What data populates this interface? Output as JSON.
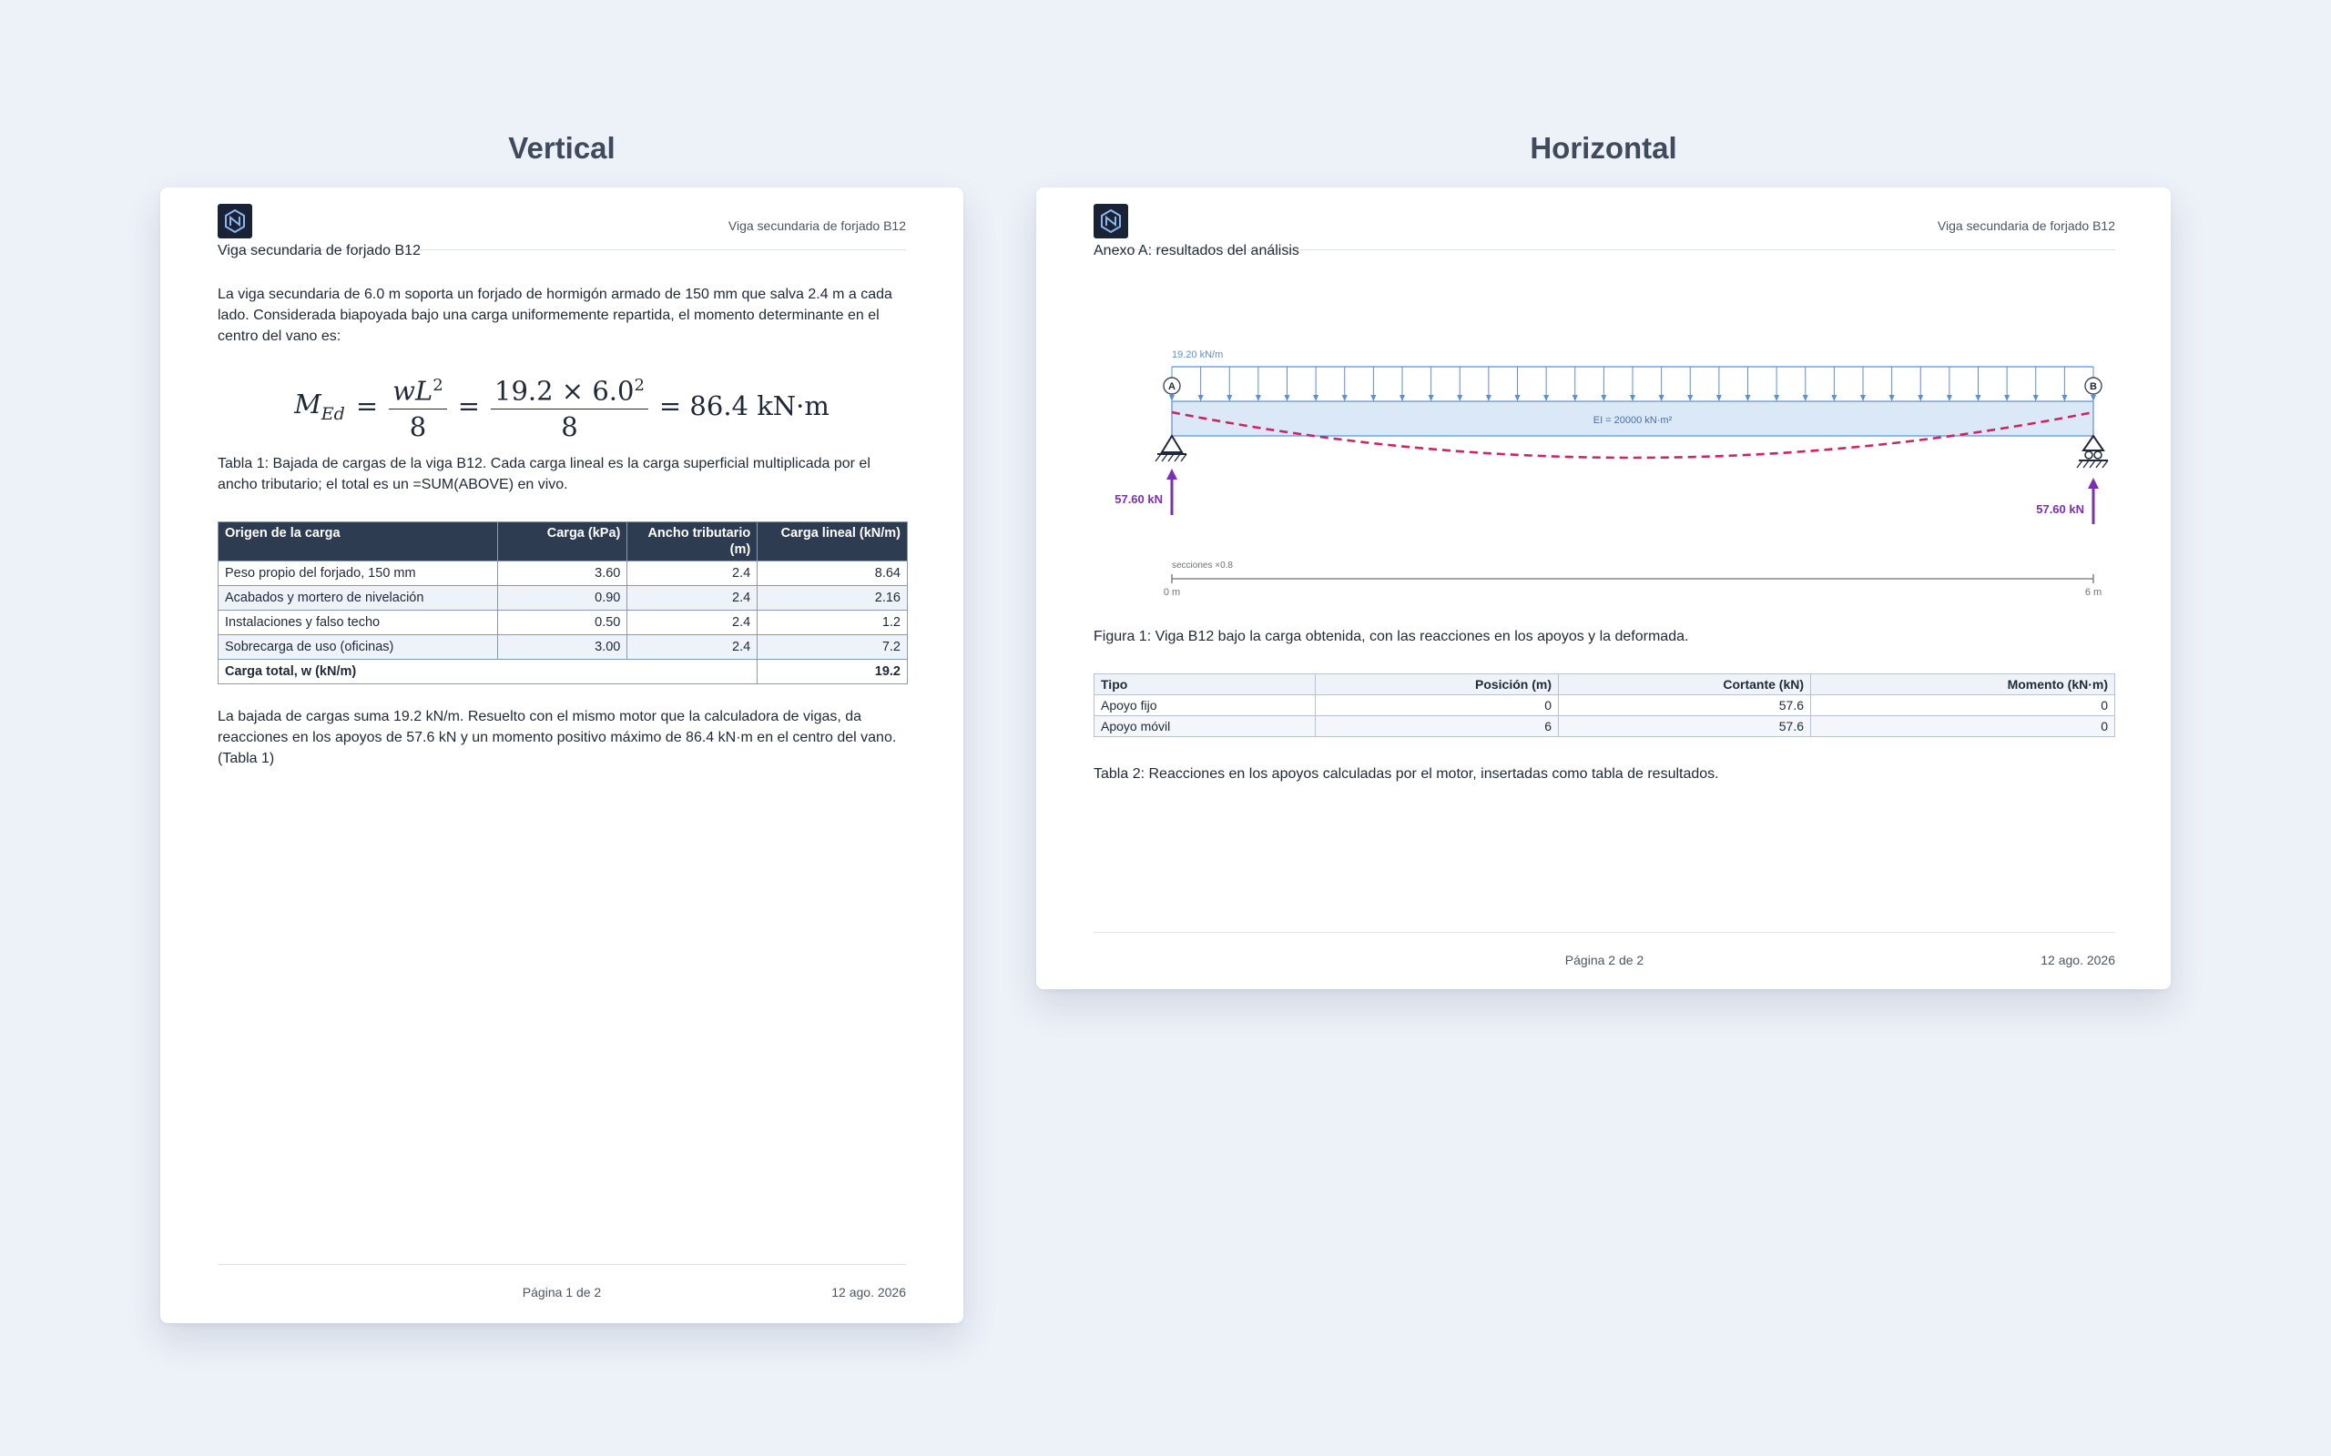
{
  "headings": {
    "vertical": "Vertical",
    "horizontal": "Horizontal"
  },
  "doc_title": "Viga secundaria de forjado B12",
  "page1": {
    "subtitle": "Viga secundaria de forjado B12",
    "intro": "La viga secundaria de 6.0 m soporta un forjado de hormigón armado de 150 mm que salva 2.4 m a cada lado. Considerada biapoyada bajo una carga uniformemente repartida, el momento determinante en el centro del vano es:",
    "formula": {
      "lhs": "M",
      "lhs_sub": "Ed",
      "frac1_num": "wL",
      "frac1_exp": "2",
      "frac1_den": "8",
      "frac2_num": "19.2 × 6.0",
      "frac2_exp": "2",
      "frac2_den": "8",
      "rhs": "= 86.4 kN·m"
    },
    "table_caption": "Tabla 1: Bajada de cargas de la viga B12. Cada carga lineal es la carga superficial multiplicada por el ancho tributario; el total es un =SUM(ABOVE) en vivo.",
    "table": {
      "headers": [
        "Origen de la carga",
        "Carga (kPa)",
        "Ancho tributario (m)",
        "Carga lineal (kN/m)"
      ],
      "rows": [
        [
          "Peso propio del forjado, 150 mm",
          "3.60",
          "2.4",
          "8.64"
        ],
        [
          "Acabados y mortero de nivelación",
          "0.90",
          "2.4",
          "2.16"
        ],
        [
          "Instalaciones y falso techo",
          "0.50",
          "2.4",
          "1.2"
        ],
        [
          "Sobrecarga de uso (oficinas)",
          "3.00",
          "2.4",
          "7.2"
        ]
      ],
      "total_label": "Carga total, w (kN/m)",
      "total_value": "19.2"
    },
    "closing": "La bajada de cargas suma 19.2 kN/m. Resuelto con el mismo motor que la calculadora de vigas, da reacciones en los apoyos de 57.6 kN y un momento positivo máximo de 86.4 kN·m en el centro del vano. (Tabla 1)",
    "footer_page": "Página 1 de 2",
    "footer_date": "12 ago. 2026"
  },
  "page2": {
    "subtitle": "Anexo A: resultados del análisis",
    "diagram": {
      "load_label": "19.20 kN/m",
      "ei_label": "EI = 20000 kN·m²",
      "support_a": "A",
      "support_b": "B",
      "reaction_a": "57.60 kN",
      "reaction_b": "57.60 kN",
      "scale_label": "secciones ×0.8",
      "scale_start": "0 m",
      "scale_end": "6 m",
      "colors": {
        "load": "#5b8fd6",
        "beam_fill": "#dbe8f8",
        "deflection": "#d0245e",
        "reaction": "#7b2fb8"
      }
    },
    "figure_caption": "Figura 1: Viga B12 bajo la carga obtenida, con las reacciones en los apoyos y la deformada.",
    "table": {
      "headers": [
        "Tipo",
        "Posición (m)",
        "Cortante (kN)",
        "Momento (kN·m)"
      ],
      "rows": [
        [
          "Apoyo fijo",
          "0",
          "57.6",
          "0"
        ],
        [
          "Apoyo móvil",
          "6",
          "57.6",
          "0"
        ]
      ]
    },
    "table_caption": "Tabla 2: Reacciones en los apoyos calculadas por el motor, insertadas como tabla de resultados.",
    "footer_page": "Página 2 de 2",
    "footer_date": "12 ago. 2026"
  }
}
